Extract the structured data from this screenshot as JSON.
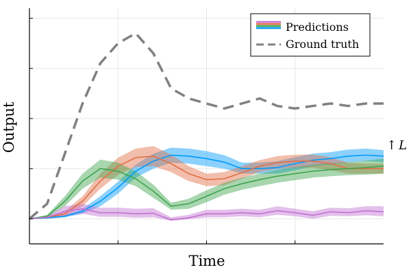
{
  "chart_data": {
    "type": "line",
    "xlabel": "Time",
    "ylabel": "Output",
    "xlim": [
      0,
      20
    ],
    "ylim": [
      -0.5,
      4.2
    ],
    "x": [
      0,
      1,
      2,
      3,
      4,
      5,
      6,
      7,
      8,
      9,
      10,
      11,
      12,
      13,
      14,
      15,
      16,
      17,
      18,
      19,
      20
    ],
    "grid": true,
    "legend_position": "top-right",
    "legend": {
      "predictions_label": "Predictions",
      "ground_truth_label": "Ground truth"
    },
    "annotation": {
      "arrow": "↑",
      "text": "L"
    },
    "ground_truth": {
      "name": "Ground truth",
      "color": "#808080",
      "values": [
        0.0,
        0.3,
        1.3,
        2.3,
        3.1,
        3.5,
        3.7,
        3.3,
        2.6,
        2.4,
        2.3,
        2.2,
        2.3,
        2.4,
        2.25,
        2.2,
        2.25,
        2.3,
        2.25,
        2.3,
        2.3
      ]
    },
    "series": [
      {
        "color": "#009af9",
        "mean": [
          0.0,
          0.02,
          0.05,
          0.15,
          0.35,
          0.62,
          0.95,
          1.15,
          1.27,
          1.25,
          1.2,
          1.13,
          1.0,
          1.0,
          1.02,
          1.1,
          1.17,
          1.2,
          1.25,
          1.27,
          1.25
        ],
        "lower": [
          0.0,
          0.0,
          0.03,
          0.1,
          0.25,
          0.5,
          0.82,
          1.0,
          1.12,
          1.1,
          1.05,
          1.0,
          0.9,
          0.9,
          0.9,
          0.97,
          1.05,
          1.08,
          1.13,
          1.15,
          1.13
        ],
        "upper": [
          0.0,
          0.04,
          0.07,
          0.2,
          0.45,
          0.74,
          1.08,
          1.3,
          1.42,
          1.4,
          1.35,
          1.27,
          1.12,
          1.12,
          1.15,
          1.23,
          1.3,
          1.33,
          1.38,
          1.4,
          1.37
        ]
      },
      {
        "color": "#e26f46",
        "mean": [
          0.0,
          0.03,
          0.1,
          0.35,
          0.75,
          1.05,
          1.22,
          1.25,
          1.1,
          0.9,
          0.78,
          0.8,
          0.92,
          1.05,
          1.12,
          1.15,
          1.15,
          1.1,
          1.0,
          1.0,
          1.0
        ],
        "lower": [
          0.0,
          0.01,
          0.05,
          0.25,
          0.6,
          0.88,
          1.03,
          1.05,
          0.93,
          0.75,
          0.65,
          0.67,
          0.8,
          0.93,
          1.0,
          1.02,
          1.02,
          0.97,
          0.9,
          0.9,
          0.9
        ],
        "upper": [
          0.0,
          0.05,
          0.15,
          0.45,
          0.9,
          1.22,
          1.4,
          1.45,
          1.28,
          1.05,
          0.9,
          0.93,
          1.05,
          1.17,
          1.25,
          1.28,
          1.28,
          1.23,
          1.12,
          1.1,
          1.1
        ]
      },
      {
        "color": "#3da44d",
        "mean": [
          0.0,
          0.05,
          0.35,
          0.75,
          1.0,
          0.95,
          0.8,
          0.55,
          0.25,
          0.3,
          0.45,
          0.6,
          0.7,
          0.78,
          0.85,
          0.9,
          0.95,
          0.98,
          1.0,
          1.02,
          1.05
        ],
        "lower": [
          0.0,
          0.02,
          0.25,
          0.6,
          0.82,
          0.78,
          0.65,
          0.42,
          0.18,
          0.2,
          0.33,
          0.48,
          0.58,
          0.65,
          0.72,
          0.77,
          0.82,
          0.85,
          0.87,
          0.88,
          0.9
        ],
        "upper": [
          0.0,
          0.08,
          0.45,
          0.9,
          1.18,
          1.12,
          0.95,
          0.68,
          0.32,
          0.4,
          0.57,
          0.72,
          0.82,
          0.9,
          0.98,
          1.03,
          1.08,
          1.11,
          1.13,
          1.16,
          1.2
        ]
      },
      {
        "color": "#c271d2",
        "mean": [
          0.0,
          0.03,
          0.15,
          0.2,
          0.12,
          0.12,
          0.1,
          0.11,
          -0.02,
          0.02,
          0.1,
          0.1,
          0.12,
          0.1,
          0.16,
          0.12,
          0.07,
          0.14,
          0.12,
          0.16,
          0.14
        ],
        "lower": [
          0.0,
          0.0,
          0.05,
          0.1,
          0.04,
          0.04,
          0.02,
          0.03,
          -0.04,
          -0.01,
          0.03,
          0.03,
          0.05,
          0.03,
          0.08,
          0.05,
          0.0,
          0.06,
          0.05,
          0.07,
          0.05
        ],
        "upper": [
          0.0,
          0.06,
          0.25,
          0.3,
          0.22,
          0.22,
          0.2,
          0.21,
          0.03,
          0.08,
          0.18,
          0.18,
          0.2,
          0.18,
          0.25,
          0.2,
          0.15,
          0.22,
          0.21,
          0.25,
          0.25
        ]
      }
    ]
  }
}
